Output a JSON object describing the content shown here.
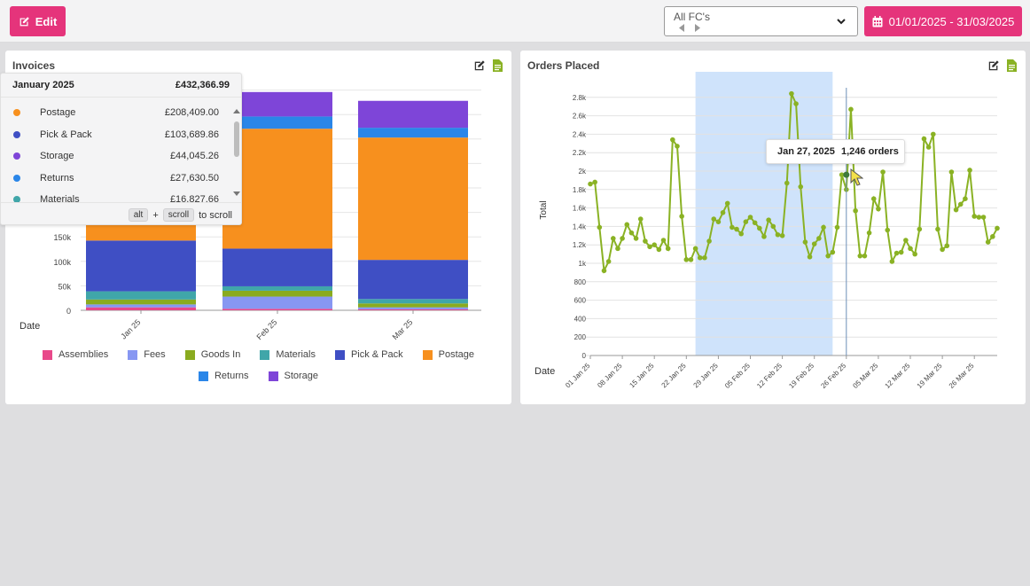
{
  "toolbar": {
    "edit_label": "Edit",
    "fc_select_value": "All FC's",
    "date_range_label": "01/01/2025 - 31/03/2025"
  },
  "invoices_panel": {
    "title": "Invoices",
    "tooltip": {
      "month": "January 2025",
      "total": "£432,366.99",
      "rows": [
        {
          "name": "Postage",
          "value": "£208,409.00",
          "color": "#f7901e"
        },
        {
          "name": "Pick & Pack",
          "value": "£103,689.86",
          "color": "#3f4fc4"
        },
        {
          "name": "Storage",
          "value": "£44,045.26",
          "color": "#7e45d8"
        },
        {
          "name": "Returns",
          "value": "£27,630.50",
          "color": "#2a86e8"
        },
        {
          "name": "Materials",
          "value": "£16,827.66",
          "color": "#40a6a9"
        }
      ],
      "scroll_hint": {
        "key1": "alt",
        "plus": "+",
        "key2": "scroll",
        "suffix": "to scroll"
      }
    }
  },
  "orders_panel": {
    "title": "Orders Placed",
    "tooltip": {
      "date": "Jan 27, 2025",
      "value": "1,246 orders"
    }
  },
  "chart_data": [
    {
      "type": "bar",
      "stacked": true,
      "title": "Invoices",
      "xlabel": "Date",
      "ylabel": "",
      "categories": [
        "Jan 25",
        "Feb 25",
        "Mar 25"
      ],
      "y_ticks": [
        "0",
        "50k",
        "100k",
        "150k"
      ],
      "ylim": [
        0,
        450000
      ],
      "series": [
        {
          "name": "Assemblies",
          "color": "#e8498a",
          "values": [
            6000,
            3000,
            2000
          ]
        },
        {
          "name": "Fees",
          "color": "#8797f2",
          "values": [
            6000,
            25000,
            4000
          ]
        },
        {
          "name": "Goods In",
          "color": "#8aab1f",
          "values": [
            10000,
            12000,
            8000
          ]
        },
        {
          "name": "Materials",
          "color": "#40a6a9",
          "values": [
            16828,
            9000,
            9000
          ]
        },
        {
          "name": "Pick & Pack",
          "color": "#3f4fc4",
          "values": [
            103690,
            77000,
            80000
          ]
        },
        {
          "name": "Postage",
          "color": "#f7901e",
          "values": [
            208409,
            245000,
            250000
          ]
        },
        {
          "name": "Returns",
          "color": "#2a86e8",
          "values": [
            27631,
            25000,
            20000
          ]
        },
        {
          "name": "Storage",
          "color": "#7e45d8",
          "values": [
            44045,
            50000,
            55000
          ]
        }
      ]
    },
    {
      "type": "line",
      "title": "Orders Placed",
      "xlabel": "Date",
      "ylabel": "Total",
      "x_ticks": [
        "01 Jan 25",
        "08 Jan 25",
        "15 Jan 25",
        "22 Jan 25",
        "29 Jan 25",
        "05 Feb 25",
        "12 Feb 25",
        "19 Feb 25",
        "26 Feb 25",
        "05 Mar 25",
        "12 Mar 25",
        "19 Mar 25",
        "26 Mar 25"
      ],
      "y_ticks": [
        "0",
        "200",
        "400",
        "600",
        "800",
        "1k",
        "1.2k",
        "1.4k",
        "1.6k",
        "1.8k",
        "2k",
        "2.2k",
        "2.4k",
        "2.6k",
        "2.8k"
      ],
      "ylim": [
        0,
        2800
      ],
      "xlim": [
        "01 Jan 25",
        "31 Mar 25"
      ],
      "color": "#8ab224",
      "highlight_range": [
        "24 Jan 25",
        "Feb 23 25"
      ],
      "values": [
        1860,
        1880,
        1390,
        920,
        1020,
        1270,
        1160,
        1270,
        1420,
        1330,
        1270,
        1480,
        1240,
        1180,
        1200,
        1150,
        1250,
        1160,
        2340,
        2270,
        1510,
        1040,
        1040,
        1160,
        1060,
        1060,
        1240,
        1480,
        1450,
        1550,
        1650,
        1390,
        1370,
        1320,
        1450,
        1500,
        1440,
        1380,
        1290,
        1470,
        1400,
        1310,
        1300,
        1870,
        2840,
        2730,
        1830,
        1230,
        1070,
        1210,
        1270,
        1390,
        1080,
        1120,
        1390,
        1960,
        1800,
        2670,
        1570,
        1080,
        1080,
        1330,
        1700,
        1590,
        1990,
        1360,
        1020,
        1110,
        1120,
        1250,
        1160,
        1100,
        1370,
        2350,
        2260,
        2400,
        1370,
        1150,
        1190,
        1990,
        1580,
        1640,
        1700,
        2010,
        1510,
        1500,
        1500,
        1230,
        1290,
        1380
      ],
      "hover_point": {
        "date": "Jan 27, 2025",
        "value": 1246
      }
    }
  ],
  "legend_invoices": [
    "Assemblies",
    "Fees",
    "Goods In",
    "Materials",
    "Pick & Pack",
    "Postage",
    "Returns",
    "Storage"
  ]
}
